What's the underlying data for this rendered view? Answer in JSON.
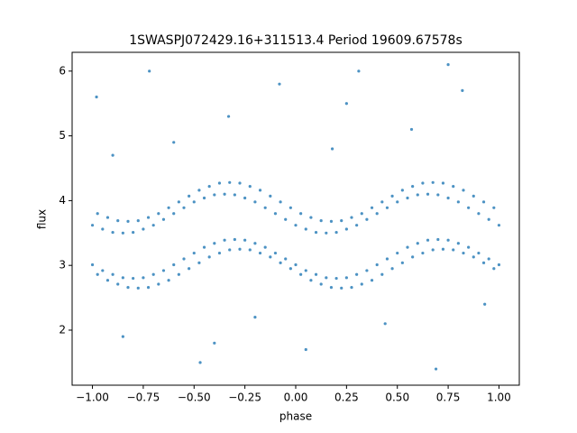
{
  "chart_data": {
    "type": "scatter",
    "title": "1SWASPJ072429.16+311513.4 Period 19609.67578s",
    "xlabel": "phase",
    "ylabel": "flux",
    "color": "#1f77b4",
    "xlim": [
      -1.1,
      1.1
    ],
    "ylim": [
      1.15,
      6.29
    ],
    "xticks": [
      {
        "value": -1,
        "label": "−1.00"
      },
      {
        "value": -0.75,
        "label": "−0.75"
      },
      {
        "value": -0.5,
        "label": "−0.50"
      },
      {
        "value": -0.25,
        "label": "−0.25"
      },
      {
        "value": 0,
        "label": "0.00"
      },
      {
        "value": 0.25,
        "label": "0.25"
      },
      {
        "value": 0.5,
        "label": "0.50"
      },
      {
        "value": 0.75,
        "label": "0.75"
      },
      {
        "value": 1,
        "label": "1.00"
      }
    ],
    "yticks": [
      2,
      3,
      4,
      5,
      6
    ],
    "x": [
      -1,
      -0.95,
      -0.9,
      -0.85,
      -0.8,
      -0.75,
      -0.7,
      -0.65,
      -0.6,
      -0.55,
      -0.5,
      -0.45,
      -0.4,
      -0.35,
      -0.3,
      -0.25,
      -0.2,
      -0.15,
      -0.1,
      -0.05,
      0,
      0.05,
      0.1,
      0.15,
      0.2,
      0.25,
      0.3,
      0.35,
      0.4,
      0.45,
      0.5,
      0.55,
      0.6,
      0.65,
      0.7,
      0.75,
      0.8,
      0.85,
      0.9,
      0.95,
      1,
      -1,
      -0.95,
      -0.9,
      -0.85,
      -0.8,
      -0.75,
      -0.7,
      -0.65,
      -0.6,
      -0.55,
      -0.5,
      -0.45,
      -0.4,
      -0.35,
      -0.3,
      -0.25,
      -0.2,
      -0.15,
      -0.1,
      -0.05,
      0,
      0.05,
      0.1,
      0.15,
      0.2,
      0.25,
      0.3,
      0.35,
      0.4,
      0.45,
      0.5,
      0.55,
      0.6,
      0.65,
      0.7,
      0.75,
      0.8,
      0.85,
      0.9,
      0.95,
      1,
      -0.975,
      -0.925,
      -0.875,
      -0.825,
      -0.775,
      -0.725,
      -0.675,
      -0.625,
      -0.575,
      -0.525,
      -0.475,
      -0.425,
      -0.375,
      -0.325,
      -0.275,
      -0.225,
      -0.175,
      -0.125,
      -0.075,
      -0.025,
      0.025,
      0.075,
      0.125,
      0.175,
      0.225,
      0.275,
      0.325,
      0.375,
      0.425,
      0.475,
      0.525,
      0.575,
      0.625,
      0.675,
      0.725,
      0.775,
      0.825,
      0.875,
      0.925,
      0.975,
      -0.975,
      -0.925,
      -0.875,
      -0.825,
      -0.775,
      -0.725,
      -0.675,
      -0.625,
      -0.575,
      -0.525,
      -0.475,
      -0.425,
      -0.375,
      -0.325,
      -0.275,
      -0.225,
      -0.175,
      -0.125,
      -0.075,
      -0.025,
      0.025,
      0.075,
      0.125,
      0.175,
      0.225,
      0.275,
      0.325,
      0.375,
      0.425,
      0.475,
      0.525,
      0.575,
      0.625,
      0.675,
      0.725,
      0.775,
      0.825,
      0.875,
      0.925,
      0.975,
      -0.98,
      -0.85,
      -0.72,
      -0.6,
      -0.47,
      -0.33,
      -0.2,
      -0.08,
      0.05,
      0.18,
      0.31,
      0.44,
      0.57,
      0.69,
      0.82,
      0.93,
      -0.9,
      -0.4,
      0.25,
      0.75
    ],
    "values": [
      3.62,
      3.56,
      3.51,
      3.5,
      3.51,
      3.56,
      3.62,
      3.71,
      3.8,
      3.89,
      3.98,
      4.04,
      4.09,
      4.1,
      4.09,
      4.04,
      3.98,
      3.89,
      3.8,
      3.71,
      3.62,
      3.56,
      3.51,
      3.5,
      3.51,
      3.56,
      3.62,
      3.71,
      3.8,
      3.89,
      3.98,
      4.04,
      4.09,
      4.1,
      4.09,
      4.04,
      3.98,
      3.89,
      3.8,
      3.71,
      3.62,
      3.01,
      2.92,
      2.86,
      2.81,
      2.8,
      2.81,
      2.86,
      2.92,
      3.01,
      3.1,
      3.19,
      3.28,
      3.34,
      3.39,
      3.4,
      3.39,
      3.34,
      3.28,
      3.19,
      3.1,
      3.01,
      2.92,
      2.86,
      2.81,
      2.8,
      2.81,
      2.86,
      2.92,
      3.01,
      3.1,
      3.19,
      3.28,
      3.34,
      3.39,
      3.4,
      3.39,
      3.34,
      3.28,
      3.19,
      3.1,
      3.01,
      3.8,
      3.74,
      3.69,
      3.68,
      3.69,
      3.74,
      3.8,
      3.89,
      3.98,
      4.07,
      4.16,
      4.22,
      4.27,
      4.28,
      4.27,
      4.22,
      4.16,
      4.07,
      3.98,
      3.89,
      3.8,
      3.74,
      3.69,
      3.68,
      3.69,
      3.74,
      3.8,
      3.89,
      3.98,
      4.07,
      4.16,
      4.22,
      4.27,
      4.28,
      4.27,
      4.22,
      4.16,
      4.07,
      3.98,
      3.89,
      2.86,
      2.77,
      2.71,
      2.66,
      2.65,
      2.66,
      2.71,
      2.77,
      2.86,
      2.95,
      3.04,
      3.13,
      3.19,
      3.24,
      3.25,
      3.24,
      3.19,
      3.13,
      3.04,
      2.95,
      2.86,
      2.77,
      2.71,
      2.66,
      2.65,
      2.66,
      2.71,
      2.77,
      2.86,
      2.95,
      3.04,
      3.13,
      3.19,
      3.24,
      3.25,
      3.24,
      3.19,
      3.13,
      3.04,
      2.95,
      5.6,
      1.9,
      6.0,
      4.9,
      1.5,
      5.3,
      2.2,
      5.8,
      1.7,
      4.8,
      6.0,
      2.1,
      5.1,
      1.4,
      5.7,
      2.4,
      4.7,
      1.8,
      5.5,
      6.1
    ]
  }
}
